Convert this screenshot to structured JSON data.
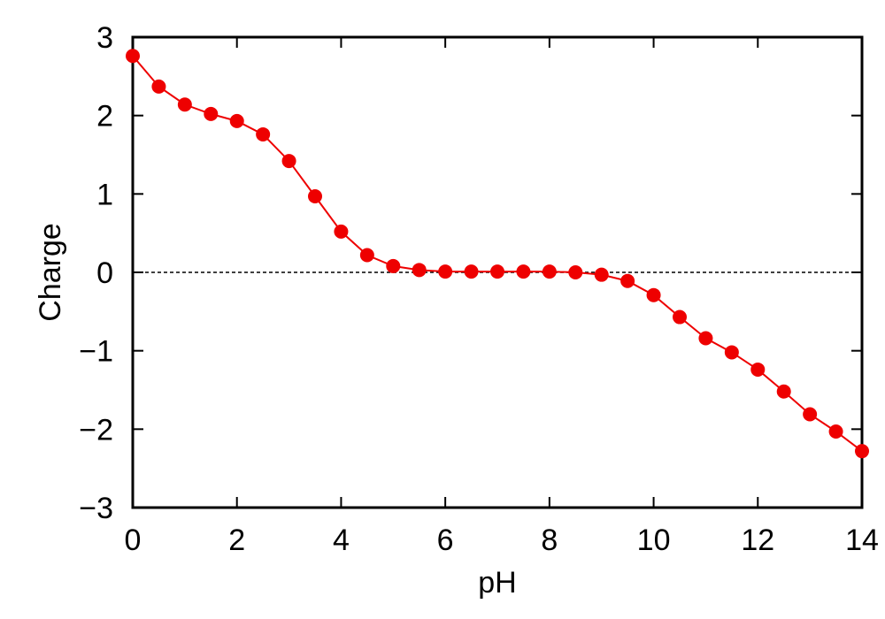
{
  "chart_data": {
    "type": "line",
    "title": "",
    "xlabel": "pH",
    "ylabel": "Charge",
    "xlim": [
      0,
      14
    ],
    "ylim": [
      -3,
      3
    ],
    "x_ticks": [
      0,
      2,
      4,
      6,
      8,
      10,
      12,
      14
    ],
    "y_ticks": [
      3,
      2,
      1,
      0,
      -1,
      -2,
      -3
    ],
    "x_tick_labels": [
      "0",
      "2",
      "4",
      "6",
      "8",
      "10",
      "12",
      "14"
    ],
    "y_tick_labels": [
      "3",
      "2",
      "1",
      "0",
      "−1",
      "−2",
      "−3"
    ],
    "grid": false,
    "reference_line": {
      "y": 0,
      "style": "dashed"
    },
    "series": [
      {
        "color": "#ee0000",
        "marker": "circle",
        "x": [
          0,
          0.5,
          1,
          1.5,
          2,
          2.5,
          3,
          3.5,
          4,
          4.5,
          5,
          5.5,
          6,
          6.5,
          7,
          7.5,
          8,
          8.5,
          9,
          9.5,
          10,
          10.5,
          11,
          11.5,
          12,
          12.5,
          13,
          13.5,
          14
        ],
        "y": [
          2.76,
          2.37,
          2.14,
          2.02,
          1.93,
          1.76,
          1.42,
          0.97,
          0.52,
          0.22,
          0.08,
          0.03,
          0.01,
          0.01,
          0.01,
          0.01,
          0.01,
          0.0,
          -0.03,
          -0.11,
          -0.29,
          -0.57,
          -0.84,
          -1.02,
          -1.24,
          -1.52,
          -1.81,
          -2.03,
          -2.28
        ]
      }
    ]
  }
}
